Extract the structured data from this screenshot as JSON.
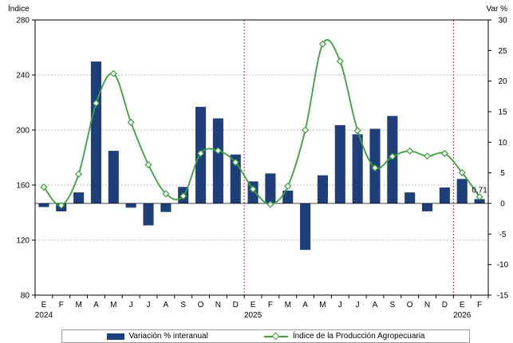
{
  "chart_data": {
    "type": "bar+line",
    "left_axis_title": "Índice",
    "right_axis_title": "Var %",
    "left_ylim": [
      80,
      280
    ],
    "left_ticks": [
      "80",
      "120",
      "160",
      "200",
      "240",
      "280"
    ],
    "right_ylim": [
      -15,
      30
    ],
    "right_ticks": [
      "-15",
      "-10",
      "-5",
      "0",
      "5",
      "10",
      "15",
      "20",
      "25",
      "30"
    ],
    "categories": [
      "E",
      "F",
      "M",
      "A",
      "M",
      "J",
      "J",
      "A",
      "S",
      "O",
      "N",
      "D",
      "E",
      "F",
      "M",
      "A",
      "M",
      "J",
      "J",
      "A",
      "S",
      "O",
      "N",
      "D",
      "E",
      "F"
    ],
    "year_labels": [
      {
        "index": 0,
        "label": "2024"
      },
      {
        "index": 12,
        "label": "2025"
      },
      {
        "index": 24,
        "label": "2026"
      }
    ],
    "year_dividers": [
      12,
      24
    ],
    "grid": true,
    "series": [
      {
        "name": "Variación % interanual",
        "type": "bar",
        "axis": "right",
        "color": "#1f3f7a",
        "values": [
          -0.6,
          -1.3,
          1.8,
          23.2,
          8.6,
          -0.7,
          -3.6,
          -1.4,
          2.7,
          15.8,
          13.9,
          8.0,
          3.6,
          4.9,
          2.1,
          -7.6,
          4.6,
          12.8,
          11.3,
          12.2,
          14.3,
          1.8,
          -1.3,
          2.6,
          4.0,
          0.71
        ]
      },
      {
        "name": "Índice de la Producción Agropecuaria",
        "type": "line",
        "axis": "left",
        "color": "#3aa23a",
        "values": [
          158.5,
          145.2,
          168.0,
          219.5,
          241.0,
          205.5,
          174.8,
          153.7,
          152.0,
          183.0,
          185.0,
          176.5,
          157.0,
          146.0,
          159.2,
          200.0,
          262.5,
          250.0,
          199.6,
          172.5,
          180.8,
          184.8,
          181.0,
          183.0,
          169.0,
          151.5
        ]
      }
    ],
    "annotations": [
      {
        "text": "0,71",
        "index": 25
      }
    ]
  }
}
